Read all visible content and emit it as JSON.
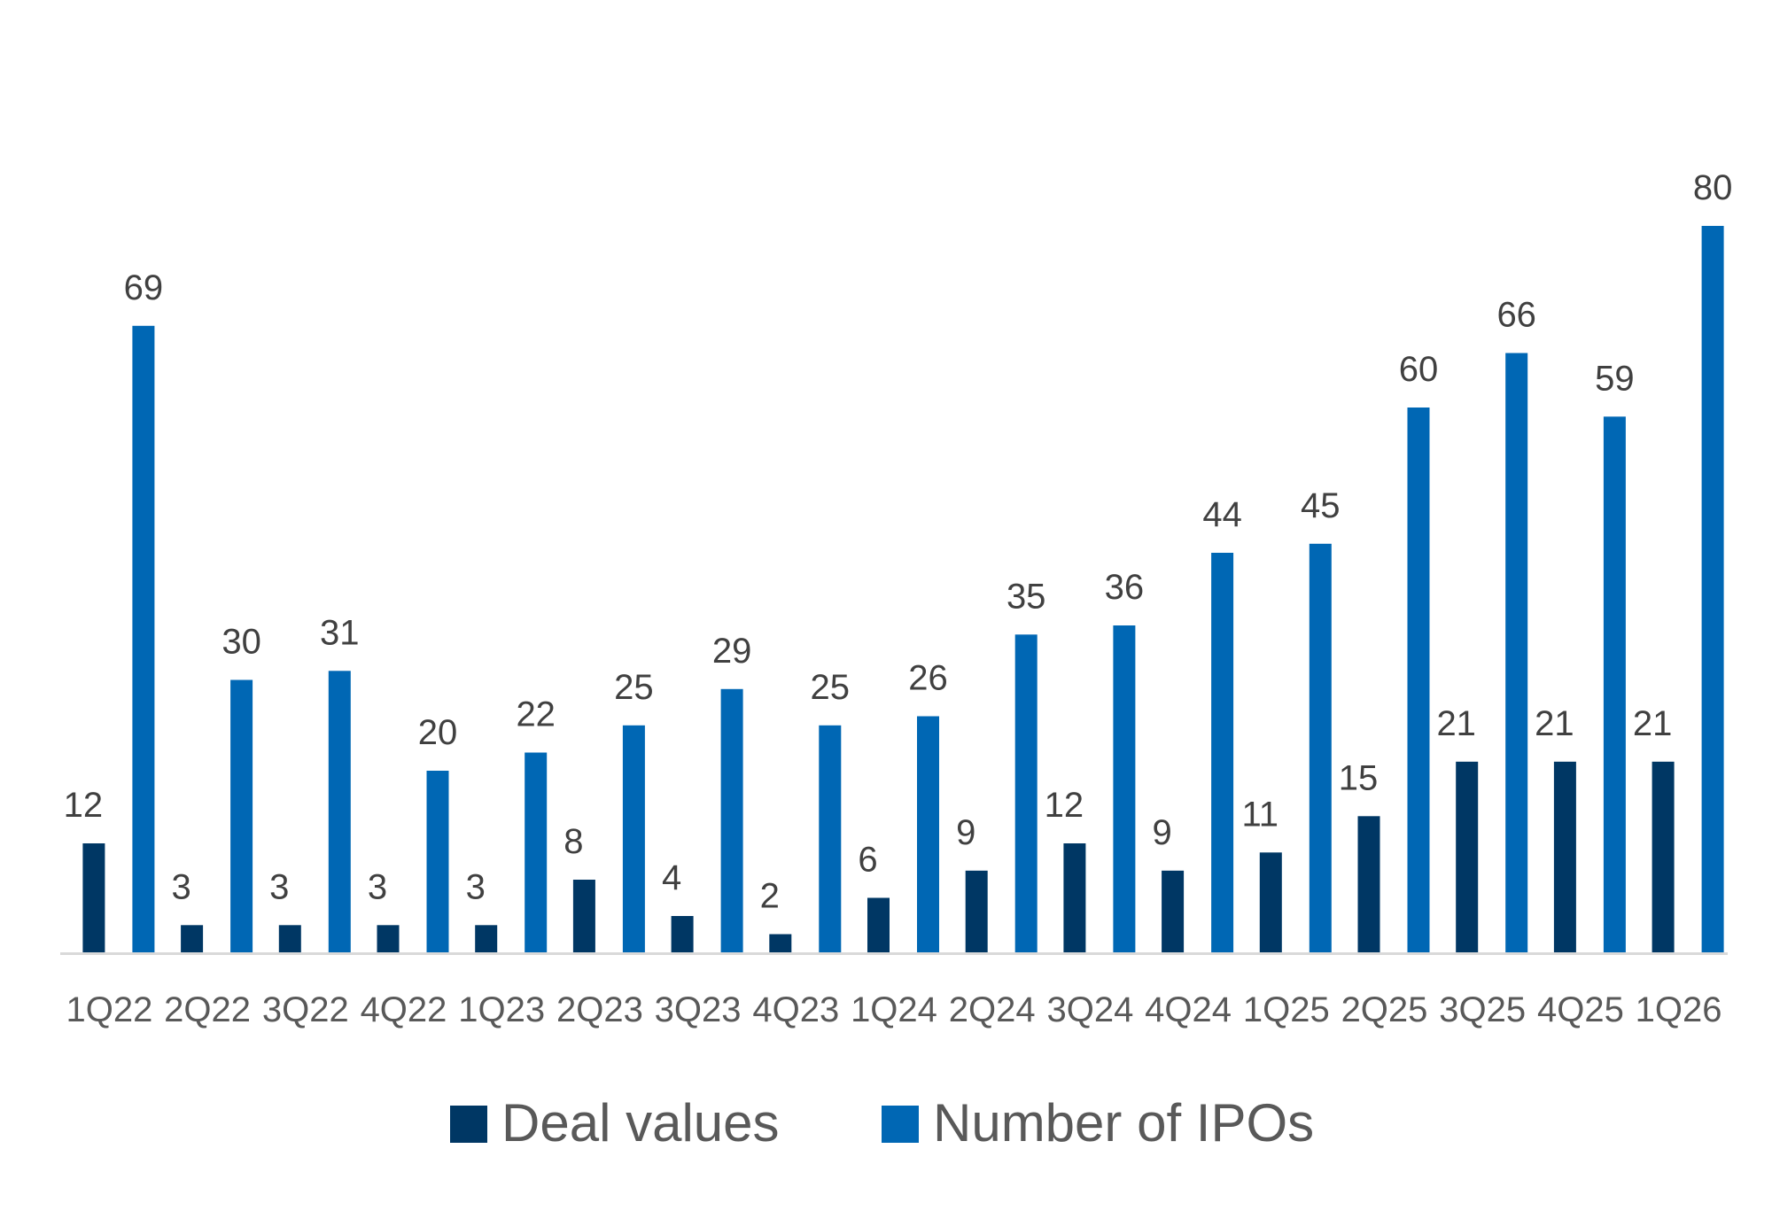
{
  "chart_data": {
    "type": "bar",
    "categories": [
      "1Q22",
      "2Q22",
      "3Q22",
      "4Q22",
      "1Q23",
      "2Q23",
      "3Q23",
      "4Q23",
      "1Q24",
      "2Q24",
      "3Q24",
      "4Q24",
      "1Q25",
      "2Q25",
      "3Q25",
      "4Q25",
      "1Q26"
    ],
    "series": [
      {
        "name": "Deal values",
        "color": "#003764",
        "values": [
          12,
          3,
          3,
          3,
          3,
          8,
          4,
          2,
          6,
          9,
          12,
          9,
          11,
          15,
          21,
          21,
          21
        ]
      },
      {
        "name": "Number of IPOs",
        "color": "#0067B4",
        "values": [
          69,
          30,
          31,
          20,
          22,
          25,
          29,
          25,
          26,
          35,
          36,
          44,
          45,
          60,
          66,
          59,
          80
        ]
      }
    ],
    "ylim": [
      0,
      80
    ],
    "grid": false,
    "legend": "bottom",
    "axis_color": "#D9D9D9"
  }
}
